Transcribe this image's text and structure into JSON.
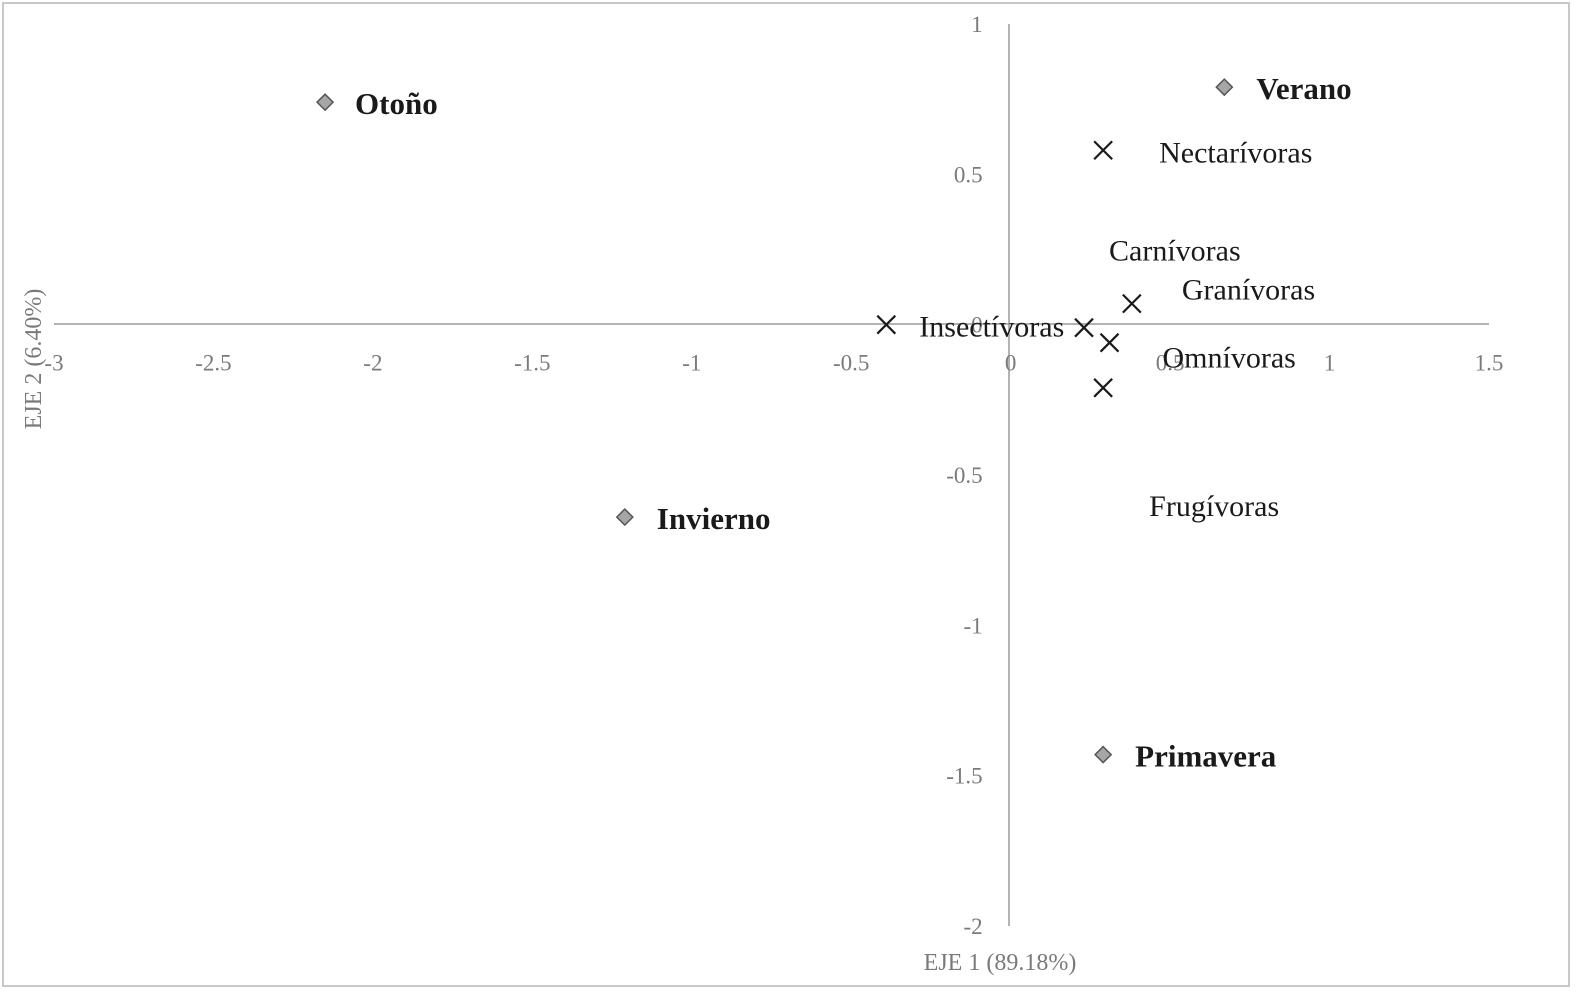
{
  "chart_data": {
    "type": "scatter",
    "title": "",
    "xlabel": "EJE 1 (89.18%)",
    "ylabel": "EJE 2 (6.40%)",
    "xlim": [
      -3,
      1.5
    ],
    "ylim": [
      -2,
      1
    ],
    "x_ticks": [
      -3,
      -2.5,
      -2,
      -1.5,
      -1,
      -0.5,
      0,
      0.5,
      1,
      1.5
    ],
    "y_ticks": [
      1,
      0.5,
      0,
      -0.5,
      -1,
      -1.5,
      -2
    ],
    "x_tick_labels": [
      "-3",
      "-2.5",
      "-2",
      "-1.5",
      "-1",
      "-0.5",
      "0",
      "0.5",
      "1",
      "1.5"
    ],
    "y_tick_labels": [
      "1",
      "0.5",
      "0",
      "-0.5",
      "-1",
      "-1.5",
      "-2"
    ],
    "grid": false,
    "legend": "none",
    "series": [
      {
        "marker": "diamond",
        "color": "#a6a6a6",
        "points": [
          {
            "label": "Otoño",
            "x": -2.15,
            "y": 0.74
          },
          {
            "label": "Verano",
            "x": 0.67,
            "y": 0.79
          },
          {
            "label": "Invierno",
            "x": -1.21,
            "y": -0.64
          },
          {
            "label": "Primavera",
            "x": 0.29,
            "y": -1.43
          }
        ]
      },
      {
        "marker": "cross",
        "color": "#1a1a1a",
        "points": [
          {
            "label": "Nectarívoras",
            "x": 0.29,
            "y": 0.58
          },
          {
            "label": "Carnívoras",
            "x": 0.23,
            "y": -0.01
          },
          {
            "label": "Granívoras",
            "x": 0.38,
            "y": 0.07
          },
          {
            "label": "Insectívoras",
            "x": -0.39,
            "y": 0.0
          },
          {
            "label": "Omnívoras",
            "x": 0.31,
            "y": -0.06
          },
          {
            "label": "Frugívoras",
            "x": 0.29,
            "y": -0.21
          }
        ]
      }
    ]
  }
}
